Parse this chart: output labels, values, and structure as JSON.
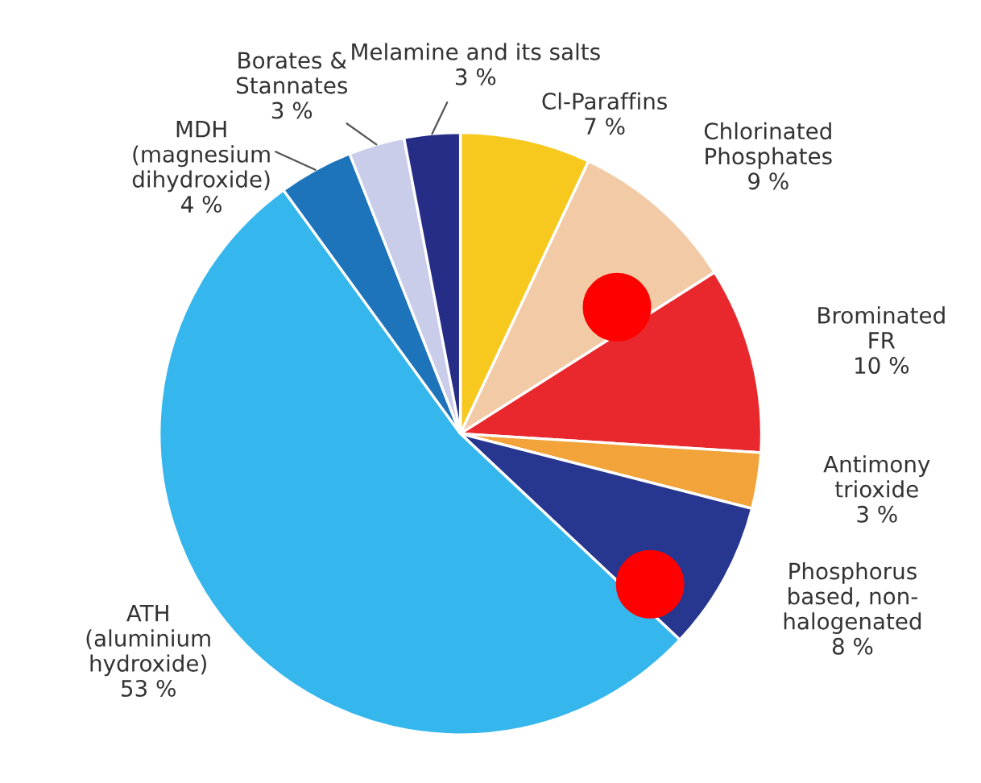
{
  "chart_data": {
    "type": "pie",
    "categories": [
      "Cl-Paraffins",
      "Chlorinated\nPhosphates",
      "Brominated\nFR",
      "Antimony\ntrioxide",
      "Phosphorus\nbased, non-\nhalogenated",
      "ATH\n(aluminium\nhydroxide)",
      "MDH\n(magnesium\ndihydroxide)",
      "Borates &\nStannates",
      "Melamine and its salts"
    ],
    "values": [
      7,
      9,
      10,
      3,
      8,
      53,
      4,
      3,
      3
    ],
    "value_labels": [
      "7 %",
      "9 %",
      "10 %",
      "3 %",
      "8 %",
      "53 %",
      "4 %",
      "3 %",
      "3 %"
    ],
    "colors": [
      "#f7c81e",
      "#f3caa6",
      "#e8282c",
      "#f2a33a",
      "#27378f",
      "#35b6ec",
      "#1d74ba",
      "#c9cde9",
      "#262d86"
    ]
  }
}
